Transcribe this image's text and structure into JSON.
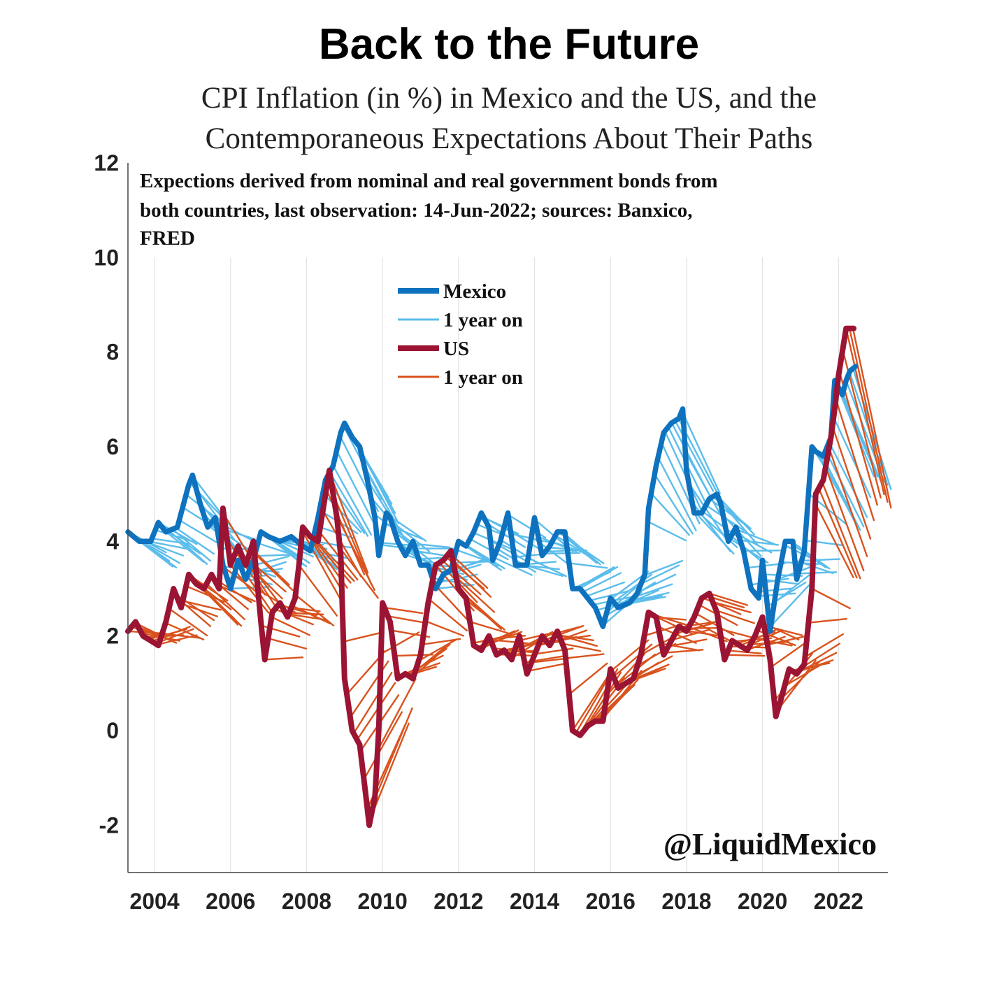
{
  "title": "Back to the Future",
  "subtitle_lines": [
    "CPI Inflation (in %) in Mexico and the US, and the",
    "Contemporaneous Expectations About Their Paths"
  ],
  "note_lines": [
    "Expections derived from nominal and real government bonds from",
    "both countries, last observation: 14-Jun-2022; sources: Banxico,",
    "FRED"
  ],
  "watermark": "@LiquidMexico",
  "colors": {
    "mexico": "#0E72BE",
    "mexico_expect": "#5BBDEB",
    "us": "#9B1433",
    "us_expect": "#D9531E",
    "grid": "#e3e3e3",
    "axis": "#444444"
  },
  "chart_data": {
    "type": "line",
    "x_range": [
      2003.3,
      2023.3
    ],
    "ylim": [
      -3,
      12
    ],
    "y_ticks": [
      "12",
      "10",
      "8",
      "6",
      "4",
      "2",
      "0",
      "-2"
    ],
    "y_tick_values": [
      12,
      10,
      8,
      6,
      4,
      2,
      0,
      -2
    ],
    "x_ticks": [
      "2004",
      "2006",
      "2008",
      "2010",
      "2012",
      "2014",
      "2016",
      "2018",
      "2020",
      "2022"
    ],
    "x_tick_values": [
      2004,
      2006,
      2008,
      2010,
      2012,
      2014,
      2016,
      2018,
      2020,
      2022
    ],
    "grid": "vertical",
    "legend_position": "top-center",
    "legend": [
      {
        "label": "Mexico",
        "color_key": "mexico",
        "style": "thick"
      },
      {
        "label": "1 year on",
        "color_key": "mexico_expect",
        "style": "thin"
      },
      {
        "label": "US",
        "color_key": "us",
        "style": "thick"
      },
      {
        "label": "1 year on",
        "color_key": "us_expect",
        "style": "thin"
      }
    ],
    "series": [
      {
        "name": "Mexico",
        "points": [
          [
            2003.3,
            4.2
          ],
          [
            2003.6,
            4.0
          ],
          [
            2003.9,
            4.0
          ],
          [
            2004.1,
            4.4
          ],
          [
            2004.3,
            4.2
          ],
          [
            2004.6,
            4.3
          ],
          [
            2004.9,
            5.2
          ],
          [
            2005.0,
            5.4
          ],
          [
            2005.2,
            4.8
          ],
          [
            2005.4,
            4.3
          ],
          [
            2005.6,
            4.5
          ],
          [
            2005.8,
            3.5
          ],
          [
            2006.0,
            3.0
          ],
          [
            2006.2,
            3.6
          ],
          [
            2006.4,
            3.2
          ],
          [
            2006.6,
            3.6
          ],
          [
            2006.8,
            4.2
          ],
          [
            2007.0,
            4.1
          ],
          [
            2007.3,
            4.0
          ],
          [
            2007.6,
            4.1
          ],
          [
            2007.9,
            3.9
          ],
          [
            2008.1,
            3.8
          ],
          [
            2008.3,
            4.5
          ],
          [
            2008.5,
            5.3
          ],
          [
            2008.7,
            5.6
          ],
          [
            2008.9,
            6.3
          ],
          [
            2009.0,
            6.5
          ],
          [
            2009.2,
            6.2
          ],
          [
            2009.4,
            6.0
          ],
          [
            2009.6,
            5.3
          ],
          [
            2009.8,
            4.5
          ],
          [
            2009.9,
            3.7
          ],
          [
            2010.1,
            4.6
          ],
          [
            2010.2,
            4.5
          ],
          [
            2010.4,
            4.0
          ],
          [
            2010.6,
            3.7
          ],
          [
            2010.8,
            4.0
          ],
          [
            2011.0,
            3.5
          ],
          [
            2011.2,
            3.5
          ],
          [
            2011.4,
            3.0
          ],
          [
            2011.6,
            3.3
          ],
          [
            2011.8,
            3.4
          ],
          [
            2012.0,
            4.0
          ],
          [
            2012.2,
            3.9
          ],
          [
            2012.4,
            4.2
          ],
          [
            2012.6,
            4.6
          ],
          [
            2012.8,
            4.3
          ],
          [
            2012.9,
            3.6
          ],
          [
            2013.1,
            4.0
          ],
          [
            2013.3,
            4.6
          ],
          [
            2013.5,
            3.5
          ],
          [
            2013.8,
            3.5
          ],
          [
            2014.0,
            4.5
          ],
          [
            2014.2,
            3.7
          ],
          [
            2014.4,
            3.9
          ],
          [
            2014.6,
            4.2
          ],
          [
            2014.8,
            4.2
          ],
          [
            2015.0,
            3.0
          ],
          [
            2015.2,
            3.0
          ],
          [
            2015.4,
            2.8
          ],
          [
            2015.6,
            2.6
          ],
          [
            2015.8,
            2.2
          ],
          [
            2016.0,
            2.8
          ],
          [
            2016.2,
            2.6
          ],
          [
            2016.5,
            2.7
          ],
          [
            2016.7,
            2.9
          ],
          [
            2016.9,
            3.3
          ],
          [
            2017.0,
            4.7
          ],
          [
            2017.2,
            5.6
          ],
          [
            2017.4,
            6.3
          ],
          [
            2017.6,
            6.5
          ],
          [
            2017.8,
            6.6
          ],
          [
            2017.9,
            6.8
          ],
          [
            2018.0,
            5.5
          ],
          [
            2018.2,
            4.6
          ],
          [
            2018.4,
            4.6
          ],
          [
            2018.6,
            4.9
          ],
          [
            2018.8,
            5.0
          ],
          [
            2018.9,
            4.8
          ],
          [
            2019.1,
            4.0
          ],
          [
            2019.3,
            4.3
          ],
          [
            2019.5,
            3.8
          ],
          [
            2019.7,
            3.0
          ],
          [
            2019.9,
            2.8
          ],
          [
            2020.0,
            3.6
          ],
          [
            2020.2,
            2.1
          ],
          [
            2020.4,
            3.2
          ],
          [
            2020.6,
            4.0
          ],
          [
            2020.8,
            4.0
          ],
          [
            2020.9,
            3.2
          ],
          [
            2021.1,
            3.8
          ],
          [
            2021.3,
            6.0
          ],
          [
            2021.4,
            5.9
          ],
          [
            2021.6,
            5.8
          ],
          [
            2021.8,
            6.2
          ],
          [
            2021.9,
            7.4
          ],
          [
            2022.1,
            7.1
          ],
          [
            2022.2,
            7.4
          ],
          [
            2022.3,
            7.6
          ],
          [
            2022.45,
            7.7
          ]
        ]
      },
      {
        "name": "US",
        "points": [
          [
            2003.3,
            2.1
          ],
          [
            2003.5,
            2.3
          ],
          [
            2003.7,
            2.0
          ],
          [
            2003.9,
            1.9
          ],
          [
            2004.1,
            1.8
          ],
          [
            2004.3,
            2.3
          ],
          [
            2004.5,
            3.0
          ],
          [
            2004.7,
            2.6
          ],
          [
            2004.9,
            3.3
          ],
          [
            2005.1,
            3.1
          ],
          [
            2005.3,
            3.0
          ],
          [
            2005.5,
            3.3
          ],
          [
            2005.7,
            3.0
          ],
          [
            2005.8,
            4.7
          ],
          [
            2006.0,
            3.5
          ],
          [
            2006.2,
            3.9
          ],
          [
            2006.4,
            3.5
          ],
          [
            2006.6,
            4.0
          ],
          [
            2006.8,
            2.3
          ],
          [
            2006.9,
            1.5
          ],
          [
            2007.1,
            2.5
          ],
          [
            2007.3,
            2.7
          ],
          [
            2007.5,
            2.4
          ],
          [
            2007.7,
            2.8
          ],
          [
            2007.8,
            3.5
          ],
          [
            2007.9,
            4.3
          ],
          [
            2008.1,
            4.1
          ],
          [
            2008.3,
            4.0
          ],
          [
            2008.5,
            5.0
          ],
          [
            2008.6,
            5.5
          ],
          [
            2008.8,
            4.5
          ],
          [
            2008.9,
            3.7
          ],
          [
            2009.0,
            1.1
          ],
          [
            2009.2,
            0.0
          ],
          [
            2009.4,
            -0.3
          ],
          [
            2009.55,
            -1.3
          ],
          [
            2009.65,
            -2.0
          ],
          [
            2009.8,
            -1.4
          ],
          [
            2009.9,
            0.0
          ],
          [
            2010.0,
            2.7
          ],
          [
            2010.2,
            2.3
          ],
          [
            2010.4,
            1.1
          ],
          [
            2010.6,
            1.2
          ],
          [
            2010.8,
            1.1
          ],
          [
            2011.0,
            1.6
          ],
          [
            2011.2,
            2.7
          ],
          [
            2011.4,
            3.5
          ],
          [
            2011.6,
            3.6
          ],
          [
            2011.8,
            3.8
          ],
          [
            2012.0,
            3.0
          ],
          [
            2012.2,
            2.8
          ],
          [
            2012.4,
            1.8
          ],
          [
            2012.6,
            1.7
          ],
          [
            2012.8,
            2.0
          ],
          [
            2013.0,
            1.6
          ],
          [
            2013.2,
            1.7
          ],
          [
            2013.4,
            1.5
          ],
          [
            2013.6,
            2.0
          ],
          [
            2013.8,
            1.2
          ],
          [
            2014.0,
            1.6
          ],
          [
            2014.2,
            2.0
          ],
          [
            2014.4,
            1.8
          ],
          [
            2014.6,
            2.1
          ],
          [
            2014.8,
            1.7
          ],
          [
            2015.0,
            0.0
          ],
          [
            2015.2,
            -0.1
          ],
          [
            2015.4,
            0.1
          ],
          [
            2015.6,
            0.2
          ],
          [
            2015.8,
            0.2
          ],
          [
            2016.0,
            1.3
          ],
          [
            2016.2,
            0.9
          ],
          [
            2016.4,
            1.0
          ],
          [
            2016.6,
            1.1
          ],
          [
            2016.8,
            1.6
          ],
          [
            2017.0,
            2.5
          ],
          [
            2017.2,
            2.4
          ],
          [
            2017.4,
            1.6
          ],
          [
            2017.6,
            1.9
          ],
          [
            2017.8,
            2.2
          ],
          [
            2018.0,
            2.1
          ],
          [
            2018.2,
            2.4
          ],
          [
            2018.4,
            2.8
          ],
          [
            2018.6,
            2.9
          ],
          [
            2018.8,
            2.5
          ],
          [
            2019.0,
            1.5
          ],
          [
            2019.2,
            1.9
          ],
          [
            2019.4,
            1.8
          ],
          [
            2019.6,
            1.7
          ],
          [
            2019.8,
            2.0
          ],
          [
            2020.0,
            2.4
          ],
          [
            2020.2,
            1.5
          ],
          [
            2020.35,
            0.3
          ],
          [
            2020.5,
            0.7
          ],
          [
            2020.7,
            1.3
          ],
          [
            2020.9,
            1.2
          ],
          [
            2021.1,
            1.4
          ],
          [
            2021.3,
            3.0
          ],
          [
            2021.4,
            5.0
          ],
          [
            2021.6,
            5.3
          ],
          [
            2021.8,
            6.2
          ],
          [
            2021.9,
            6.8
          ],
          [
            2022.0,
            7.5
          ],
          [
            2022.2,
            8.5
          ],
          [
            2022.4,
            8.5
          ]
        ]
      }
    ]
  }
}
